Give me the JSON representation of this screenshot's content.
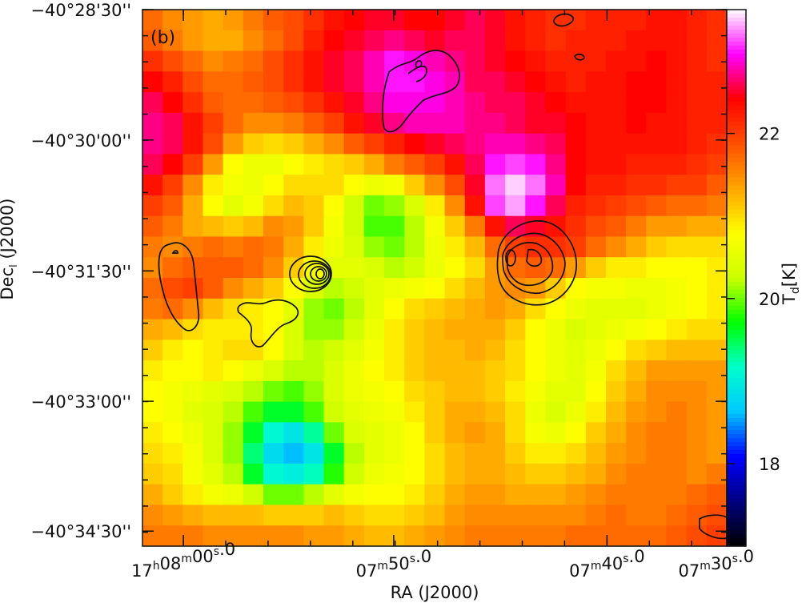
{
  "chart_data": {
    "type": "heatmap",
    "panel_label": "(b)",
    "xlabel": "RA (J2000)",
    "ylabel": "Dec (J2000)",
    "colorbar_label": "T_d [K]",
    "x_ticks": [
      {
        "parts": [
          "17",
          "h",
          "08",
          "m",
          "00",
          "s",
          ".0"
        ]
      },
      {
        "parts": [
          "",
          "",
          "07",
          "m",
          "50",
          "s",
          ".0"
        ]
      },
      {
        "parts": [
          "",
          "",
          "07",
          "m",
          "40",
          "s",
          ".0"
        ]
      },
      {
        "parts": [
          "",
          "",
          "07",
          "m",
          "30",
          "s",
          ".0"
        ]
      }
    ],
    "y_ticks": [
      "−40°28'30''",
      "−40°30'00''",
      "−40°31'30''",
      "−40°33'00''",
      "−40°34'30''"
    ],
    "colorbar_ticks": [
      "18",
      "20",
      "22"
    ],
    "colorbar_range": [
      17.0,
      23.5
    ],
    "colormap": [
      "#000000",
      "#000080",
      "#0000ff",
      "#00c8ff",
      "#00ffcc",
      "#00ff00",
      "#ccff00",
      "#ffff00",
      "#ffa500",
      "#ff5000",
      "#ff0000",
      "#ff00ff",
      "#ffffff"
    ],
    "grid_shape": [
      26,
      29
    ],
    "temperature_grid": [
      [
        21.7,
        21.5,
        21.4,
        21.3,
        21.4,
        21.6,
        21.8,
        21.9,
        22.1,
        22.3,
        22.4,
        22.5,
        22.5,
        22.4,
        22.4,
        22.5,
        22.6,
        22.5,
        22.3,
        22.2,
        22.1,
        22.1,
        22.2,
        22.2,
        22.2,
        22.3,
        22.3,
        22.2,
        22.1
      ],
      [
        21.8,
        21.6,
        21.4,
        21.3,
        21.3,
        21.5,
        21.7,
        21.9,
        22.2,
        22.4,
        22.5,
        22.6,
        22.7,
        22.6,
        22.5,
        22.6,
        22.6,
        22.5,
        22.3,
        22.2,
        22.1,
        22.2,
        22.2,
        22.2,
        22.3,
        22.3,
        22.3,
        22.2,
        22.1
      ],
      [
        22.1,
        21.9,
        21.7,
        21.5,
        21.6,
        21.7,
        21.9,
        22.1,
        22.3,
        22.5,
        22.6,
        22.8,
        23.0,
        22.9,
        22.8,
        22.7,
        22.6,
        22.5,
        22.4,
        22.3,
        22.2,
        22.2,
        22.2,
        22.3,
        22.3,
        22.4,
        22.3,
        22.2,
        22.1
      ],
      [
        22.4,
        22.2,
        21.9,
        21.7,
        21.7,
        21.8,
        21.9,
        22.1,
        22.3,
        22.5,
        22.6,
        22.8,
        23.0,
        23.0,
        22.9,
        22.8,
        22.6,
        22.6,
        22.5,
        22.4,
        22.3,
        22.2,
        22.3,
        22.3,
        22.4,
        22.4,
        22.3,
        22.2,
        22.2
      ],
      [
        22.6,
        22.4,
        22.1,
        21.8,
        21.7,
        21.7,
        21.8,
        21.9,
        22.1,
        22.3,
        22.5,
        22.7,
        22.9,
        22.9,
        22.9,
        22.8,
        22.7,
        22.6,
        22.6,
        22.5,
        22.4,
        22.3,
        22.3,
        22.3,
        22.4,
        22.4,
        22.3,
        22.2,
        22.2
      ],
      [
        22.7,
        22.6,
        22.3,
        22.0,
        21.7,
        21.5,
        21.5,
        21.6,
        21.8,
        22.0,
        22.3,
        22.5,
        22.7,
        22.8,
        22.8,
        22.8,
        22.7,
        22.7,
        22.6,
        22.5,
        22.5,
        22.4,
        22.3,
        22.3,
        22.4,
        22.3,
        22.3,
        22.2,
        22.2
      ],
      [
        22.7,
        22.6,
        22.3,
        21.9,
        21.4,
        21.1,
        21.0,
        21.1,
        21.3,
        21.5,
        21.8,
        22.0,
        22.2,
        22.4,
        22.5,
        22.6,
        22.7,
        22.8,
        22.8,
        22.7,
        22.6,
        22.4,
        22.3,
        22.3,
        22.3,
        22.3,
        22.3,
        22.2,
        22.1
      ],
      [
        22.6,
        22.4,
        22.0,
        21.4,
        20.8,
        20.6,
        20.6,
        20.8,
        20.9,
        21.0,
        21.1,
        21.3,
        21.6,
        21.8,
        22.0,
        22.3,
        22.6,
        23.0,
        23.1,
        23.0,
        22.7,
        22.4,
        22.3,
        22.3,
        22.2,
        22.2,
        22.2,
        22.1,
        22.0
      ],
      [
        22.3,
        22.0,
        21.5,
        20.9,
        20.7,
        20.6,
        20.8,
        21.0,
        21.0,
        21.0,
        20.8,
        20.6,
        20.7,
        21.1,
        21.5,
        21.9,
        22.5,
        23.2,
        23.4,
        23.2,
        22.8,
        22.4,
        22.2,
        22.2,
        22.1,
        22.1,
        22.0,
        22.0,
        21.8
      ],
      [
        22.0,
        21.8,
        21.3,
        20.8,
        20.5,
        20.7,
        21.0,
        21.2,
        21.1,
        20.8,
        20.3,
        20.0,
        20.1,
        20.4,
        20.9,
        21.5,
        22.3,
        23.1,
        23.3,
        23.0,
        22.6,
        22.2,
        22.1,
        22.0,
        21.9,
        21.8,
        21.7,
        21.7,
        21.6
      ],
      [
        21.8,
        21.6,
        21.3,
        21.2,
        21.1,
        21.2,
        21.5,
        21.4,
        21.1,
        20.7,
        20.3,
        19.9,
        19.9,
        20.2,
        20.7,
        21.1,
        21.6,
        22.3,
        22.6,
        22.5,
        22.3,
        22.1,
        21.9,
        21.8,
        21.6,
        21.4,
        21.4,
        21.3,
        21.3
      ],
      [
        21.6,
        21.5,
        21.6,
        21.7,
        21.6,
        21.7,
        21.6,
        21.3,
        20.9,
        20.6,
        20.4,
        20.1,
        20.0,
        20.2,
        20.6,
        20.9,
        21.2,
        21.7,
        22.0,
        22.1,
        22.1,
        22.0,
        21.7,
        21.5,
        21.3,
        21.1,
        21.0,
        21.0,
        21.0
      ],
      [
        21.5,
        21.7,
        21.8,
        21.8,
        21.8,
        21.7,
        21.5,
        21.1,
        20.7,
        20.5,
        20.5,
        20.4,
        20.2,
        20.3,
        20.6,
        20.8,
        21.0,
        21.4,
        21.7,
        21.8,
        21.7,
        21.4,
        21.1,
        20.9,
        20.9,
        20.8,
        20.8,
        20.8,
        20.9
      ],
      [
        21.7,
        21.9,
        22.0,
        21.8,
        21.5,
        21.3,
        21.1,
        20.8,
        20.4,
        20.2,
        20.3,
        20.5,
        20.6,
        20.7,
        20.8,
        21.0,
        21.2,
        21.4,
        21.5,
        21.4,
        21.1,
        20.8,
        20.7,
        20.7,
        20.6,
        20.6,
        20.7,
        20.8,
        20.9
      ],
      [
        21.6,
        21.7,
        21.5,
        21.2,
        21.0,
        20.9,
        20.8,
        20.5,
        20.1,
        20.0,
        20.2,
        20.5,
        20.8,
        21.0,
        21.1,
        21.2,
        21.3,
        21.4,
        21.3,
        21.0,
        20.8,
        20.6,
        20.5,
        20.5,
        20.5,
        20.6,
        20.7,
        20.8,
        20.9
      ],
      [
        21.3,
        21.2,
        21.0,
        20.9,
        20.9,
        20.9,
        20.8,
        20.4,
        20.1,
        20.1,
        20.3,
        20.6,
        20.9,
        21.1,
        21.2,
        21.3,
        21.3,
        21.3,
        21.1,
        20.8,
        20.6,
        20.4,
        20.5,
        20.6,
        20.7,
        20.8,
        20.9,
        21.0,
        21.0
      ],
      [
        21.1,
        20.9,
        20.8,
        20.9,
        21.0,
        21.0,
        20.8,
        20.4,
        20.2,
        20.3,
        20.5,
        20.7,
        20.9,
        21.1,
        21.2,
        21.2,
        21.3,
        21.2,
        21.0,
        20.8,
        20.6,
        20.5,
        20.6,
        20.8,
        21.0,
        21.1,
        21.2,
        21.2,
        21.2
      ],
      [
        20.9,
        20.8,
        20.8,
        20.9,
        20.8,
        20.6,
        20.4,
        20.2,
        20.2,
        20.4,
        20.6,
        20.8,
        20.9,
        21.1,
        21.2,
        21.2,
        21.2,
        21.1,
        21.0,
        20.8,
        20.6,
        20.5,
        20.7,
        21.0,
        21.2,
        21.4,
        21.4,
        21.4,
        21.4
      ],
      [
        20.8,
        20.7,
        20.6,
        20.5,
        20.4,
        20.2,
        20.0,
        19.9,
        20.1,
        20.4,
        20.6,
        20.7,
        20.8,
        21.0,
        21.1,
        21.2,
        21.2,
        21.1,
        20.9,
        20.7,
        20.5,
        20.5,
        20.8,
        21.1,
        21.3,
        21.5,
        21.5,
        21.5,
        21.4
      ],
      [
        20.8,
        20.7,
        20.5,
        20.4,
        20.2,
        19.9,
        19.6,
        19.6,
        19.9,
        20.3,
        20.5,
        20.6,
        20.7,
        20.9,
        21.1,
        21.3,
        21.3,
        21.2,
        21.0,
        20.6,
        20.4,
        20.6,
        20.9,
        21.2,
        21.4,
        21.5,
        21.6,
        21.5,
        21.4
      ],
      [
        20.9,
        20.8,
        20.6,
        20.4,
        20.1,
        19.6,
        19.1,
        18.9,
        19.3,
        20.0,
        20.4,
        20.5,
        20.6,
        20.8,
        21.1,
        21.3,
        21.4,
        21.3,
        21.0,
        20.7,
        20.6,
        20.8,
        21.1,
        21.3,
        21.5,
        21.6,
        21.6,
        21.5,
        21.4
      ],
      [
        21.0,
        20.9,
        20.7,
        20.4,
        20.1,
        19.4,
        18.8,
        18.6,
        18.9,
        19.6,
        20.2,
        20.5,
        20.6,
        20.8,
        21.0,
        21.2,
        21.3,
        21.3,
        21.1,
        20.9,
        20.9,
        21.0,
        21.2,
        21.4,
        21.5,
        21.6,
        21.6,
        21.5,
        21.4
      ],
      [
        21.1,
        21.0,
        20.7,
        20.5,
        20.2,
        19.6,
        19.1,
        19.0,
        19.2,
        19.8,
        20.3,
        20.6,
        20.7,
        20.8,
        21.0,
        21.2,
        21.3,
        21.3,
        21.2,
        21.1,
        21.1,
        21.2,
        21.3,
        21.5,
        21.6,
        21.6,
        21.6,
        21.5,
        21.6
      ],
      [
        21.3,
        21.1,
        20.9,
        20.7,
        20.6,
        20.3,
        20.0,
        20.0,
        20.2,
        20.5,
        20.7,
        20.8,
        20.8,
        20.9,
        21.1,
        21.3,
        21.4,
        21.4,
        21.3,
        21.3,
        21.3,
        21.4,
        21.5,
        21.6,
        21.6,
        21.6,
        21.6,
        21.7,
        21.8
      ],
      [
        21.5,
        21.4,
        21.3,
        21.2,
        21.2,
        21.2,
        21.1,
        21.1,
        21.1,
        21.2,
        21.1,
        21.0,
        21.0,
        21.1,
        21.2,
        21.4,
        21.5,
        21.5,
        21.5,
        21.5,
        21.5,
        21.5,
        21.6,
        21.7,
        21.6,
        21.6,
        21.7,
        21.8,
        21.9
      ],
      [
        21.6,
        21.6,
        21.6,
        21.5,
        21.5,
        21.5,
        21.5,
        21.5,
        21.4,
        21.4,
        21.3,
        21.2,
        21.2,
        21.3,
        21.4,
        21.5,
        21.6,
        21.6,
        21.6,
        21.6,
        21.6,
        21.7,
        21.7,
        21.7,
        21.7,
        21.7,
        21.8,
        21.9,
        22.0
      ]
    ]
  }
}
